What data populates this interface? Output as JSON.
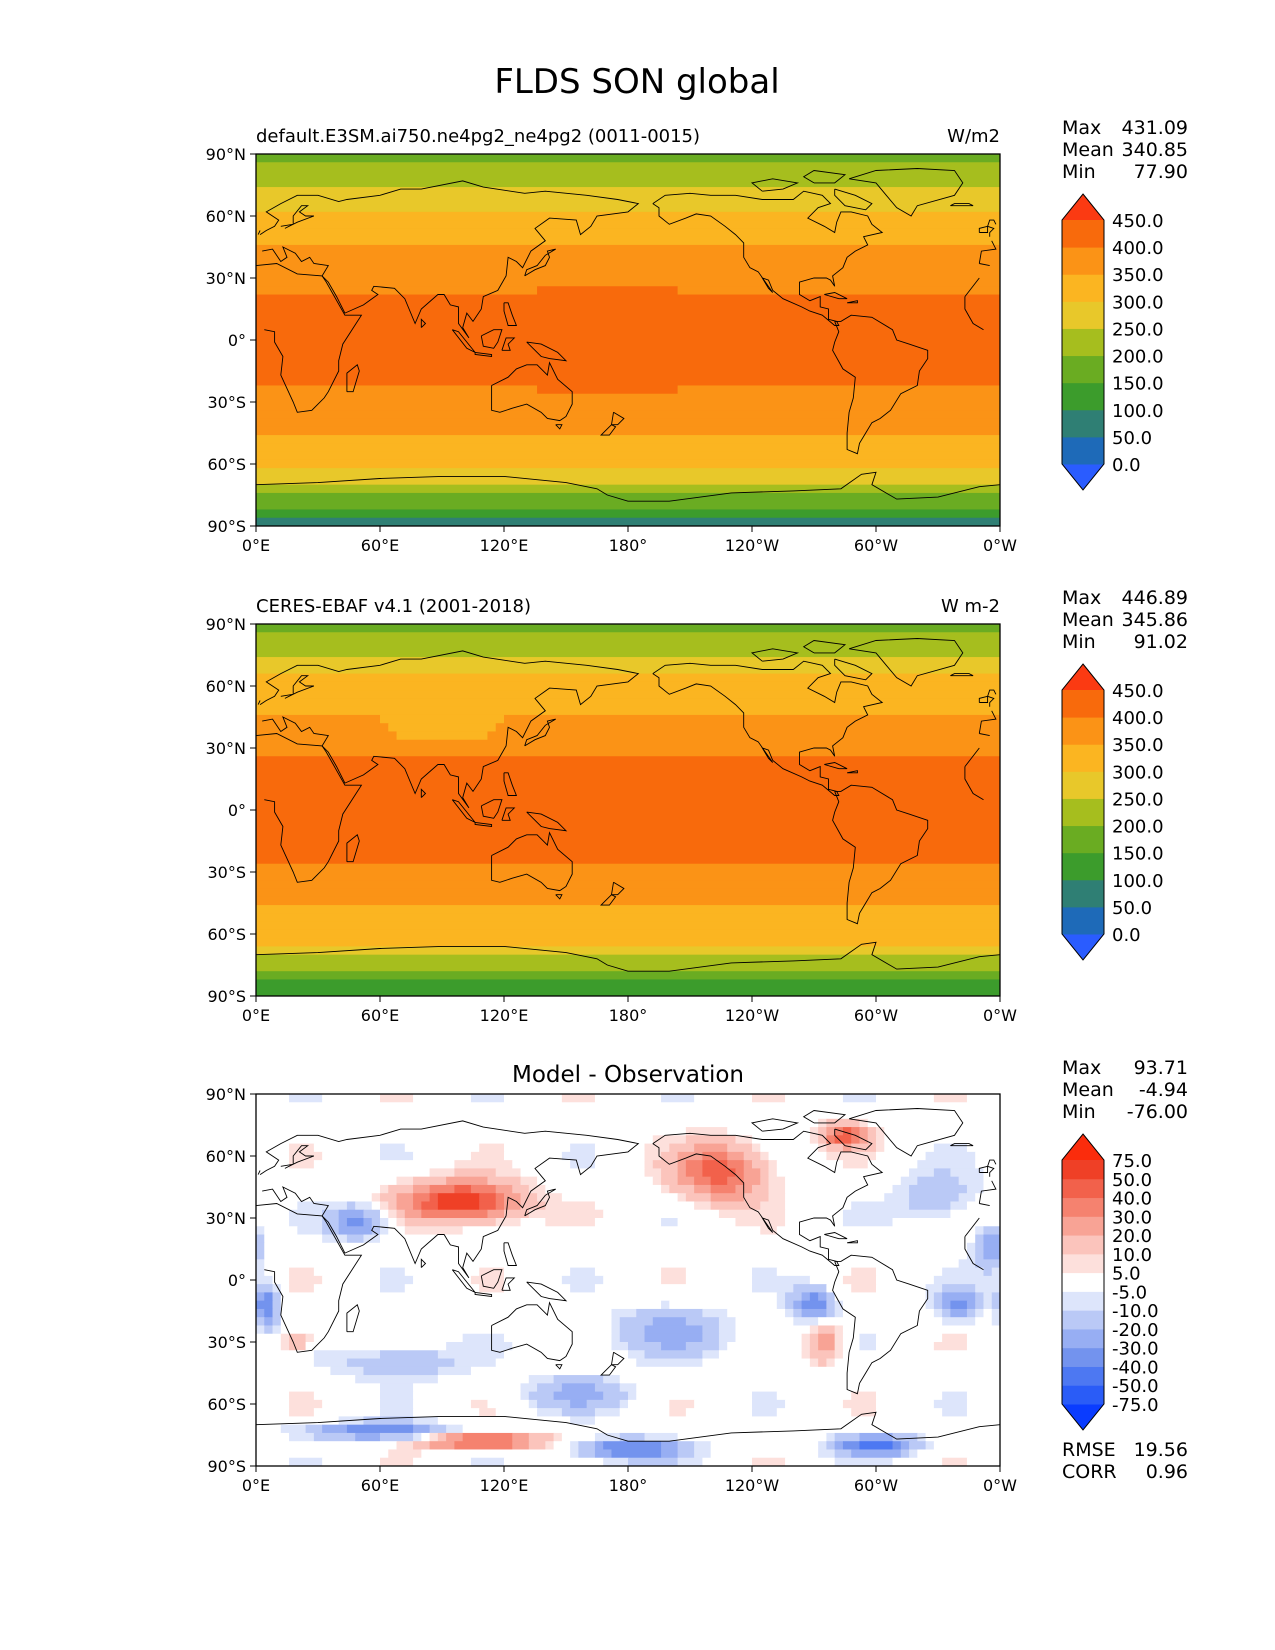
{
  "title": "FLDS SON global",
  "lat_ticks": [
    "90°N",
    "60°N",
    "30°N",
    "0°",
    "30°S",
    "60°S",
    "90°S"
  ],
  "lon_ticks": [
    "0°E",
    "60°E",
    "120°E",
    "180°",
    "120°W",
    "60°W",
    "0°W"
  ],
  "panels": [
    {
      "id": "model",
      "left_title": "default.E3SM.ai750.ne4pg2_ne4pg2 (0011-0015)",
      "center_title": "",
      "units": "W/m2",
      "stats": {
        "max_label": "Max",
        "max": "431.09",
        "mean_label": "Mean",
        "mean": "340.85",
        "min_label": "Min",
        "min": "77.90"
      },
      "colorbar": {
        "labels": [
          "450.0",
          "400.0",
          "350.0",
          "300.0",
          "250.0",
          "200.0",
          "150.0",
          "100.0",
          "50.0",
          "0.0"
        ],
        "colors": [
          "#2a5cff",
          "#1e6ab8",
          "#2f7f74",
          "#3c9c2c",
          "#6aac22",
          "#a6be1e",
          "#e8c82a",
          "#fbb521",
          "#fb9316",
          "#f86a0c",
          "#fb3a12"
        ]
      }
    },
    {
      "id": "obs",
      "left_title": "CERES-EBAF v4.1 (2001-2018)",
      "center_title": "",
      "units": "W m-2",
      "stats": {
        "max_label": "Max",
        "max": "446.89",
        "mean_label": "Mean",
        "mean": "345.86",
        "min_label": "Min",
        "min": "91.02"
      },
      "colorbar": {
        "labels": [
          "450.0",
          "400.0",
          "350.0",
          "300.0",
          "250.0",
          "200.0",
          "150.0",
          "100.0",
          "50.0",
          "0.0"
        ],
        "colors": [
          "#2a5cff",
          "#1e6ab8",
          "#2f7f74",
          "#3c9c2c",
          "#6aac22",
          "#a6be1e",
          "#e8c82a",
          "#fbb521",
          "#fb9316",
          "#f86a0c",
          "#fb3a12"
        ]
      }
    },
    {
      "id": "diff",
      "left_title": "",
      "center_title": "Model - Observation",
      "units": "",
      "stats": {
        "max_label": "Max",
        "max": "93.71",
        "mean_label": "Mean",
        "mean": "-4.94",
        "min_label": "Min",
        "min": "-76.00"
      },
      "colorbar": {
        "labels": [
          "75.0",
          "50.0",
          "40.0",
          "30.0",
          "20.0",
          "10.0",
          "5.0",
          "-5.0",
          "-10.0",
          "-20.0",
          "-30.0",
          "-40.0",
          "-50.0",
          "-75.0"
        ],
        "colors": [
          "#0a3cff",
          "#2a5cf7",
          "#4d78f2",
          "#7393ee",
          "#97aef3",
          "#bac9f6",
          "#dde5fb",
          "#ffffff",
          "#fde0dc",
          "#fbc4bc",
          "#f8a395",
          "#f5826f",
          "#f2614b",
          "#ef4026",
          "#fb2c0c"
        ]
      },
      "extra": {
        "rmse_label": "RMSE",
        "rmse": "19.56",
        "corr_label": "CORR",
        "corr": "0.96"
      }
    }
  ],
  "map_data": {
    "projection": "PlateCarree",
    "extent": {
      "lon": [
        0,
        360
      ],
      "lat": [
        -90,
        90
      ]
    },
    "coastlines": true
  }
}
